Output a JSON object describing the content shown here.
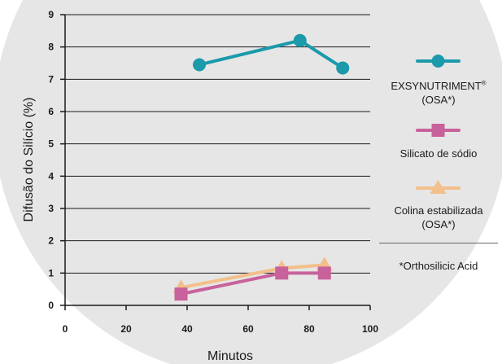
{
  "chart_data": {
    "type": "line",
    "xlabel": "Minutos",
    "ylabel": "Difusão do Silício (%)",
    "xlim": [
      0,
      100
    ],
    "ylim": [
      0,
      9
    ],
    "x_ticks": [
      "0",
      "20",
      "40",
      "60",
      "80",
      "100"
    ],
    "y_ticks": [
      "0",
      "1",
      "2",
      "3",
      "4",
      "5",
      "6",
      "7",
      "8",
      "9"
    ],
    "grid": "horizontal",
    "legend_position": "right",
    "series": [
      {
        "name": "EXSYNUTRIMENT",
        "name_suffix": "(OSA*)",
        "registered_mark": "®",
        "marker": "circle",
        "color": "#1a9aaa",
        "points": [
          {
            "x": 44,
            "y": 7.45
          },
          {
            "x": 77,
            "y": 8.2
          },
          {
            "x": 91,
            "y": 7.35
          }
        ]
      },
      {
        "name": "Silicato de sódio",
        "marker": "square",
        "color": "#c8629b",
        "points": [
          {
            "x": 38,
            "y": 0.35
          },
          {
            "x": 71,
            "y": 1.0
          },
          {
            "x": 85,
            "y": 1.0
          }
        ]
      },
      {
        "name": "Colina estabilizada",
        "name_suffix": "(OSA*)",
        "marker": "triangle",
        "color": "#f3bf8a",
        "points": [
          {
            "x": 38,
            "y": 0.55
          },
          {
            "x": 71,
            "y": 1.15
          },
          {
            "x": 85,
            "y": 1.25
          }
        ]
      }
    ],
    "footnote": "*Orthosilicic Acid"
  },
  "colors": {
    "background_circle": "#e6e6e6",
    "axis": "#1a1a1a",
    "grid": "#1a1a1a"
  }
}
